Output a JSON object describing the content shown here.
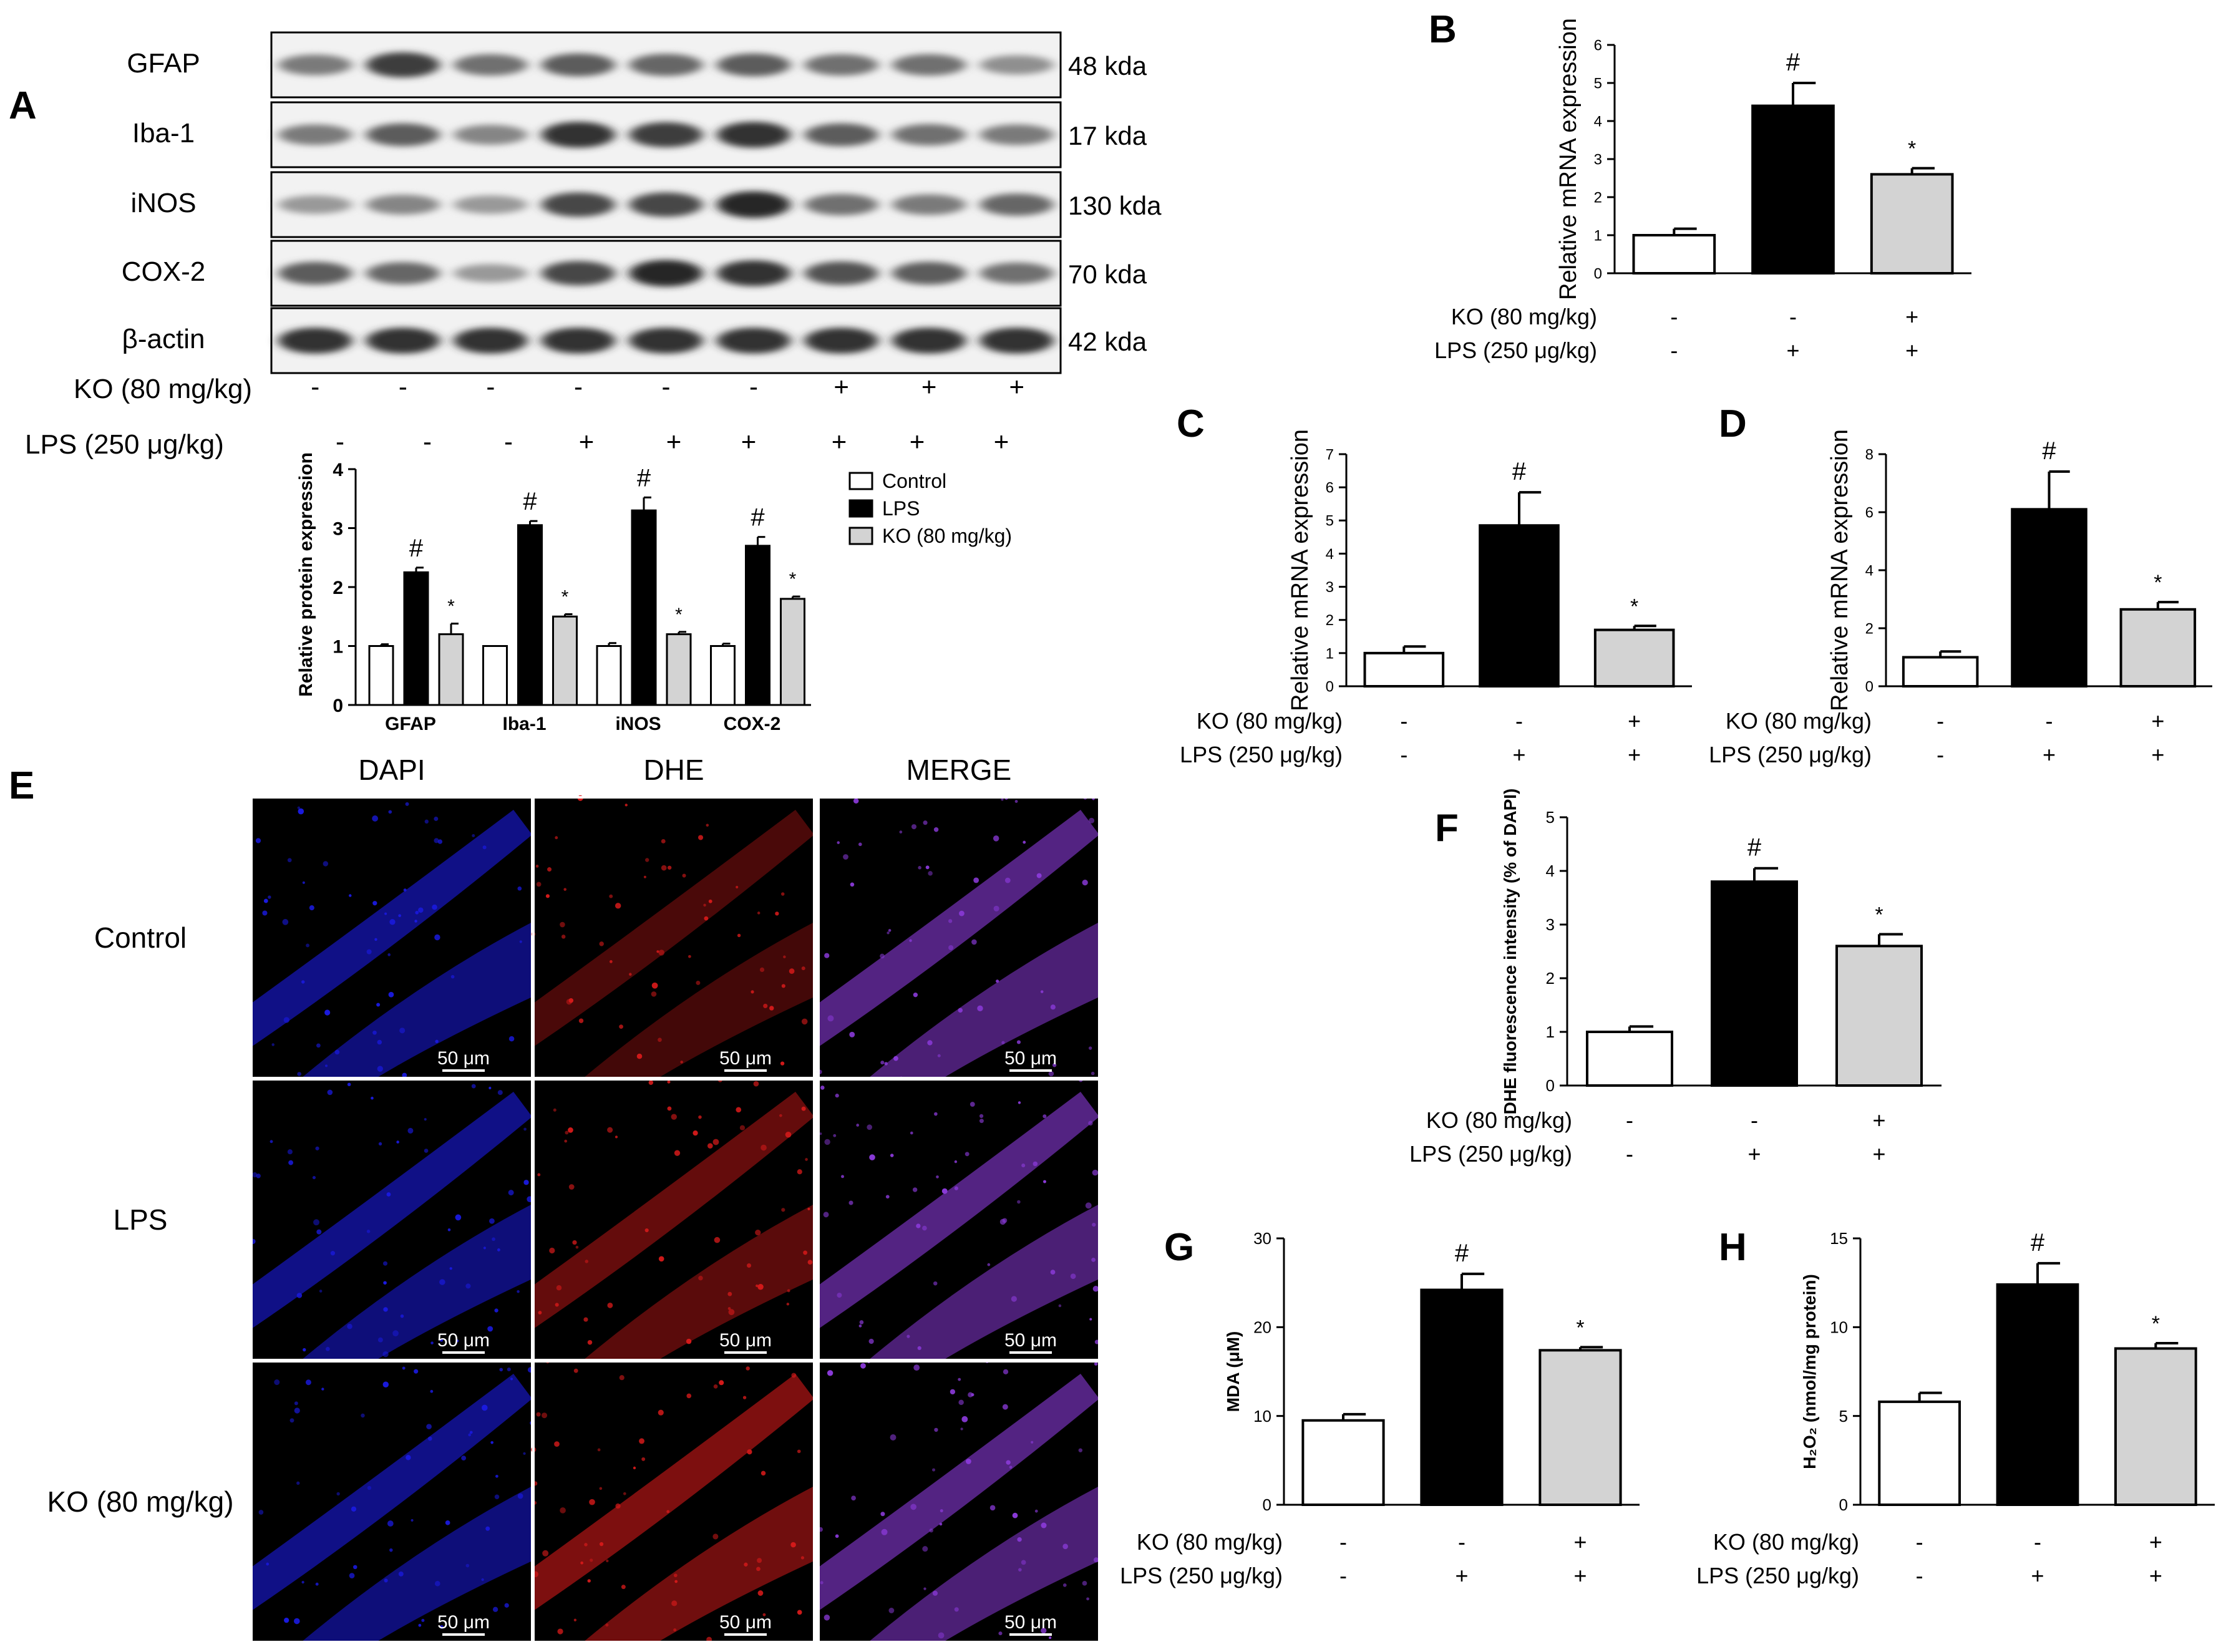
{
  "panel_letters": {
    "A": "A",
    "B": "B",
    "C": "C",
    "D": "D",
    "E": "E",
    "F": "F",
    "G": "G",
    "H": "H"
  },
  "blot": {
    "proteins": [
      "GFAP",
      "Iba-1",
      "iNOS",
      "COX-2",
      "β-actin"
    ],
    "sizes": [
      "48 kda",
      "17 kda",
      "130 kda",
      "70 kda",
      "42 kda"
    ],
    "band_intensity": [
      [
        0.55,
        0.85,
        0.6,
        0.7,
        0.65,
        0.7,
        0.6,
        0.6,
        0.45
      ],
      [
        0.55,
        0.7,
        0.5,
        0.9,
        0.85,
        0.9,
        0.7,
        0.6,
        0.55
      ],
      [
        0.4,
        0.5,
        0.4,
        0.8,
        0.8,
        0.95,
        0.6,
        0.55,
        0.65
      ],
      [
        0.7,
        0.65,
        0.4,
        0.8,
        0.95,
        0.9,
        0.75,
        0.7,
        0.6
      ],
      [
        0.9,
        0.9,
        0.9,
        0.9,
        0.9,
        0.9,
        0.9,
        0.9,
        0.9
      ]
    ],
    "ko_label": "KO (80 mg/kg)",
    "lps_label": "LPS (250 μg/kg)",
    "ko_signs": [
      "-",
      "-",
      "-",
      "-",
      "-",
      "-",
      "+",
      "+",
      "+"
    ],
    "lps_signs": [
      "-",
      "-",
      "-",
      "+",
      "+",
      "+",
      "+",
      "+",
      "+"
    ]
  },
  "treatment": {
    "ko_label": "KO (80 mg/kg)",
    "lps_label": "LPS (250 μg/kg)",
    "ko_signs": [
      "-",
      "-",
      "+"
    ],
    "lps_signs": [
      "-",
      "+",
      "+"
    ]
  },
  "colors": {
    "control": "#ffffff",
    "lps": "#000000",
    "ko": "#d3d3d3",
    "dapi": "#1a1ae0",
    "dhe": "#d41a1a"
  },
  "images": {
    "columns": [
      "DAPI",
      "DHE",
      "MERGE"
    ],
    "rows": [
      "Control",
      "LPS",
      "KO (80 mg/kg)"
    ],
    "scale_bar": "50 μm"
  },
  "chart_data": [
    {
      "id": "A",
      "type": "bar",
      "ylabel": "Relative protein expression",
      "categories": [
        "GFAP",
        "Iba-1",
        "iNOS",
        "COX-2"
      ],
      "ylim": [
        0,
        4
      ],
      "yticks": [
        0,
        1,
        2,
        3,
        4
      ],
      "legend": {
        "position": "right",
        "entries": [
          "Control",
          "LPS",
          "KO (80 mg/kg)"
        ]
      },
      "series": [
        {
          "name": "Control",
          "values": [
            1.0,
            1.0,
            1.0,
            1.0
          ],
          "errors": [
            0.03,
            0.0,
            0.05,
            0.04
          ]
        },
        {
          "name": "LPS",
          "values": [
            2.25,
            3.05,
            3.3,
            2.7
          ],
          "errors": [
            0.08,
            0.07,
            0.22,
            0.15
          ]
        },
        {
          "name": "KO (80 mg/kg)",
          "values": [
            1.2,
            1.5,
            1.2,
            1.8
          ],
          "errors": [
            0.18,
            0.04,
            0.04,
            0.04
          ]
        }
      ],
      "marks": [
        [
          "",
          "#",
          "*"
        ],
        [
          "",
          "#",
          "*"
        ],
        [
          "",
          "#",
          "*"
        ],
        [
          "",
          "#",
          "*"
        ]
      ]
    },
    {
      "id": "B",
      "type": "bar",
      "ylabel": "Relative mRNA expression",
      "ylim": [
        0,
        6
      ],
      "yticks": [
        0,
        1,
        2,
        3,
        4,
        5,
        6
      ],
      "values": [
        1.0,
        4.4,
        2.6
      ],
      "errors": [
        0.17,
        0.6,
        0.16
      ],
      "marks": [
        "",
        "#",
        "*"
      ]
    },
    {
      "id": "C",
      "type": "bar",
      "ylabel": "Relative mRNA expression",
      "ylim": [
        0,
        7
      ],
      "yticks": [
        0,
        1,
        2,
        3,
        4,
        5,
        6,
        7
      ],
      "values": [
        1.0,
        4.85,
        1.7
      ],
      "errors": [
        0.2,
        1.0,
        0.12
      ],
      "marks": [
        "",
        "#",
        "*"
      ]
    },
    {
      "id": "D",
      "type": "bar",
      "ylabel": "Relative mRNA expression",
      "ylim": [
        0,
        8
      ],
      "yticks": [
        0,
        2,
        4,
        6,
        8
      ],
      "values": [
        1.0,
        6.1,
        2.65
      ],
      "errors": [
        0.2,
        1.3,
        0.25
      ],
      "marks": [
        "",
        "#",
        "*"
      ]
    },
    {
      "id": "F",
      "type": "bar",
      "ylabel": "DHE fluorescence intensity (% of DAPI)",
      "ylim": [
        0,
        5
      ],
      "yticks": [
        0,
        1,
        2,
        3,
        4,
        5
      ],
      "values": [
        1.0,
        3.8,
        2.6
      ],
      "errors": [
        0.1,
        0.25,
        0.22
      ],
      "marks": [
        "",
        "#",
        "*"
      ]
    },
    {
      "id": "G",
      "type": "bar",
      "ylabel": "MDA (μM)",
      "ylim": [
        0,
        30
      ],
      "yticks": [
        0,
        10,
        20,
        30
      ],
      "values": [
        9.5,
        24.2,
        17.4
      ],
      "errors": [
        0.7,
        1.8,
        0.35
      ],
      "marks": [
        "",
        "#",
        "*"
      ]
    },
    {
      "id": "H",
      "type": "bar",
      "ylabel": "H₂O₂ (nmol/mg protein)",
      "ylim": [
        0,
        15
      ],
      "yticks": [
        0,
        5,
        10,
        15
      ],
      "values": [
        5.8,
        12.4,
        8.8
      ],
      "errors": [
        0.5,
        1.2,
        0.3
      ],
      "marks": [
        "",
        "#",
        "*"
      ]
    }
  ]
}
